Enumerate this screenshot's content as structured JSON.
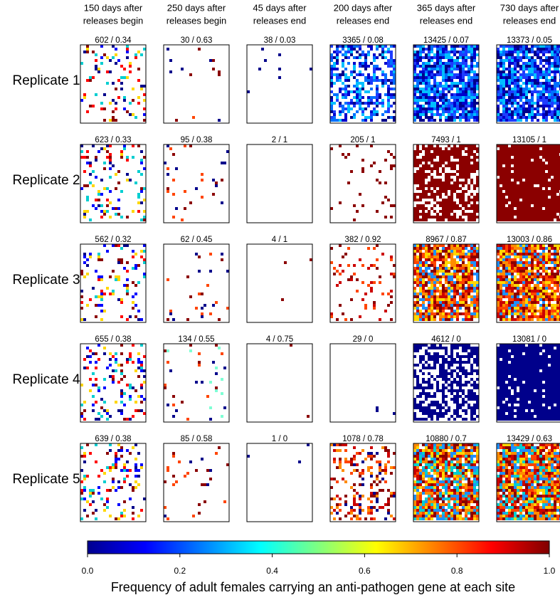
{
  "chart_data": {
    "type": "heatmap-grid",
    "columns": [
      [
        "150 days after",
        "releases begin"
      ],
      [
        "250 days after",
        "releases begin"
      ],
      [
        "45 days after",
        "releases end"
      ],
      [
        "200 days after",
        "releases end"
      ],
      [
        "365 days after",
        "releases end"
      ],
      [
        "730 days after",
        "releases end"
      ]
    ],
    "rows": [
      {
        "label": "Replicate 1",
        "panels": [
          {
            "label": "602 / 0.34",
            "colors": [
              "#00008b",
              "#8b0000",
              "#0000ff",
              "#ff0000",
              "#ffd700",
              "#00ced1"
            ]
          },
          {
            "label": "30 / 0.63",
            "colors": [
              "#00008b",
              "#8b0000",
              "#ff4500"
            ]
          },
          {
            "label": "38 / 0.03",
            "colors": [
              "#00008b"
            ]
          },
          {
            "label": "3365 / 0.08",
            "colors": [
              "#00008b",
              "#0000cd",
              "#1e3cff",
              "#0070ff",
              "#00bfff"
            ]
          },
          {
            "label": "13425 / 0.07",
            "colors": [
              "#00008b",
              "#0000cd",
              "#1e3cff",
              "#0070ff",
              "#00bfff"
            ]
          },
          {
            "label": "13373 / 0.05",
            "colors": [
              "#00008b",
              "#0000cd",
              "#1e3cff",
              "#0070ff",
              "#00bfff"
            ]
          }
        ]
      },
      {
        "label": "Replicate 2",
        "panels": [
          {
            "label": "623 / 0.33",
            "colors": [
              "#00008b",
              "#8b0000",
              "#0000ff",
              "#ff0000",
              "#ffd700",
              "#00ced1"
            ]
          },
          {
            "label": "95 / 0.38",
            "colors": [
              "#00008b",
              "#8b0000",
              "#ff4500"
            ]
          },
          {
            "label": "2 / 1",
            "colors": [
              "#8b0000"
            ]
          },
          {
            "label": "205 /  1",
            "colors": [
              "#8b0000"
            ]
          },
          {
            "label": "7493 /  1",
            "colors": [
              "#8b0000"
            ]
          },
          {
            "label": "13105 /  1",
            "colors": [
              "#8b0000"
            ]
          }
        ]
      },
      {
        "label": "Replicate 3",
        "panels": [
          {
            "label": "562 / 0.32",
            "colors": [
              "#00008b",
              "#8b0000",
              "#0000ff",
              "#ff0000",
              "#ffd700",
              "#00ced1"
            ]
          },
          {
            "label": "62 / 0.45",
            "colors": [
              "#00008b",
              "#8b0000",
              "#ff4500"
            ]
          },
          {
            "label": "4 / 1",
            "colors": [
              "#8b0000"
            ]
          },
          {
            "label": "382 / 0.92",
            "colors": [
              "#8b0000",
              "#cc0000",
              "#ff4500"
            ]
          },
          {
            "label": "8967 / 0.87",
            "colors": [
              "#8b0000",
              "#cc0000",
              "#ff4500",
              "#ff8c00",
              "#ffd700",
              "#1e90ff"
            ]
          },
          {
            "label": "13003 / 0.86",
            "colors": [
              "#8b0000",
              "#cc0000",
              "#ff4500",
              "#ff8c00",
              "#ffd700",
              "#1e90ff"
            ]
          }
        ]
      },
      {
        "label": "Replicate 4",
        "panels": [
          {
            "label": "655 / 0.38",
            "colors": [
              "#00008b",
              "#8b0000",
              "#0000ff",
              "#ff0000",
              "#ffd700",
              "#00ced1"
            ]
          },
          {
            "label": "134 / 0.55",
            "colors": [
              "#00008b",
              "#8b0000",
              "#ff4500",
              "#7fffd4"
            ]
          },
          {
            "label": "4 / 0.75",
            "colors": [
              "#00008b",
              "#8b0000"
            ]
          },
          {
            "label": "29 /  0",
            "colors": [
              "#00008b"
            ]
          },
          {
            "label": "4612 /  0",
            "colors": [
              "#00008b"
            ]
          },
          {
            "label": "13081 /  0",
            "colors": [
              "#00008b"
            ]
          }
        ]
      },
      {
        "label": "Replicate 5",
        "panels": [
          {
            "label": "639 / 0.38",
            "colors": [
              "#00008b",
              "#8b0000",
              "#0000ff",
              "#ff0000",
              "#ffd700",
              "#00ced1"
            ]
          },
          {
            "label": "85 / 0.58",
            "colors": [
              "#00008b",
              "#8b0000",
              "#ff4500"
            ]
          },
          {
            "label": "1 / 0",
            "colors": [
              "#00008b"
            ]
          },
          {
            "label": "1078 / 0.78",
            "colors": [
              "#8b0000",
              "#cc0000",
              "#ff4500",
              "#ff8c00",
              "#00008b"
            ]
          },
          {
            "label": "10880 / 0.7",
            "colors": [
              "#8b0000",
              "#cc0000",
              "#ff4500",
              "#ff8c00",
              "#ffd700",
              "#1e90ff",
              "#00ced1"
            ]
          },
          {
            "label": "13429 / 0.63",
            "colors": [
              "#8b0000",
              "#cc0000",
              "#ff4500",
              "#ff8c00",
              "#ffd700",
              "#1e90ff",
              "#00ced1"
            ]
          }
        ]
      }
    ],
    "colorbar": {
      "lim": [
        0,
        1
      ],
      "ticks": [
        {
          "value": 0,
          "label": "0.0"
        },
        {
          "value": 0.2,
          "label": "0.2"
        },
        {
          "value": 0.4,
          "label": "0.4"
        },
        {
          "value": 0.6,
          "label": "0.6"
        },
        {
          "value": 0.8,
          "label": "0.8"
        },
        {
          "value": 1,
          "label": "1.0"
        }
      ],
      "label": "Frequency of adult females carrying an anti-pathogen gene at each site"
    }
  }
}
